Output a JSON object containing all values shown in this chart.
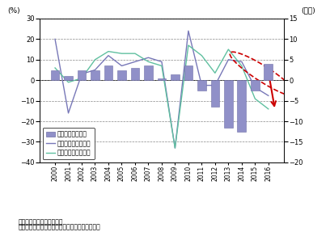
{
  "years": [
    "2000",
    "2001",
    "2002",
    "2003",
    "2004",
    "2005",
    "2006",
    "2007",
    "2008",
    "2009",
    "2010",
    "2011",
    "2012",
    "2013",
    "2014",
    "2015",
    "2016"
  ],
  "trade_balance": [
    2.5,
    1.0,
    2.5,
    2.5,
    3.5,
    2.5,
    3.0,
    3.5,
    0.5,
    1.5,
    3.5,
    -2.5,
    -6.5,
    -11.5,
    -12.5,
    -2.5,
    4.0
  ],
  "export_growth": [
    20.0,
    -16.0,
    3.0,
    5.0,
    12.0,
    7.0,
    9.0,
    11.0,
    9.0,
    -33.0,
    24.0,
    -2.5,
    -2.5,
    10.0,
    9.0,
    -3.5,
    -7.5
  ],
  "import_growth": [
    6.0,
    -1.0,
    1.0,
    10.0,
    14.0,
    13.0,
    13.0,
    9.0,
    7.0,
    -33.0,
    17.0,
    12.0,
    3.5,
    15.0,
    7.0,
    -9.0,
    -14.0
  ],
  "bar_color": "#9090c8",
  "bar_edge_color": "#7070a8",
  "export_color": "#7878b8",
  "import_color": "#60c0a0",
  "arrow_color": "#cc0000",
  "ellipse_color": "#cc0000",
  "ylim_left": [
    -40,
    30
  ],
  "ylim_right": [
    -20,
    15
  ],
  "yticks_left": [
    -40,
    -30,
    -20,
    -10,
    0,
    10,
    20,
    30
  ],
  "yticks_right": [
    -20,
    -15,
    -10,
    -5,
    0,
    5,
    10,
    15
  ],
  "ylabel_left": "(%)",
  "ylabel_right": "(兆円)",
  "note1": "備考：伸び利率は前年比。",
  "note2": "資料：財務省「貿易統計」から経済産業省作成。",
  "legend_label_bar": "貿易収支（右軸）",
  "legend_label_export": "輸出額　（伸び率）",
  "legend_label_import": "輸入額　（伸び率）"
}
